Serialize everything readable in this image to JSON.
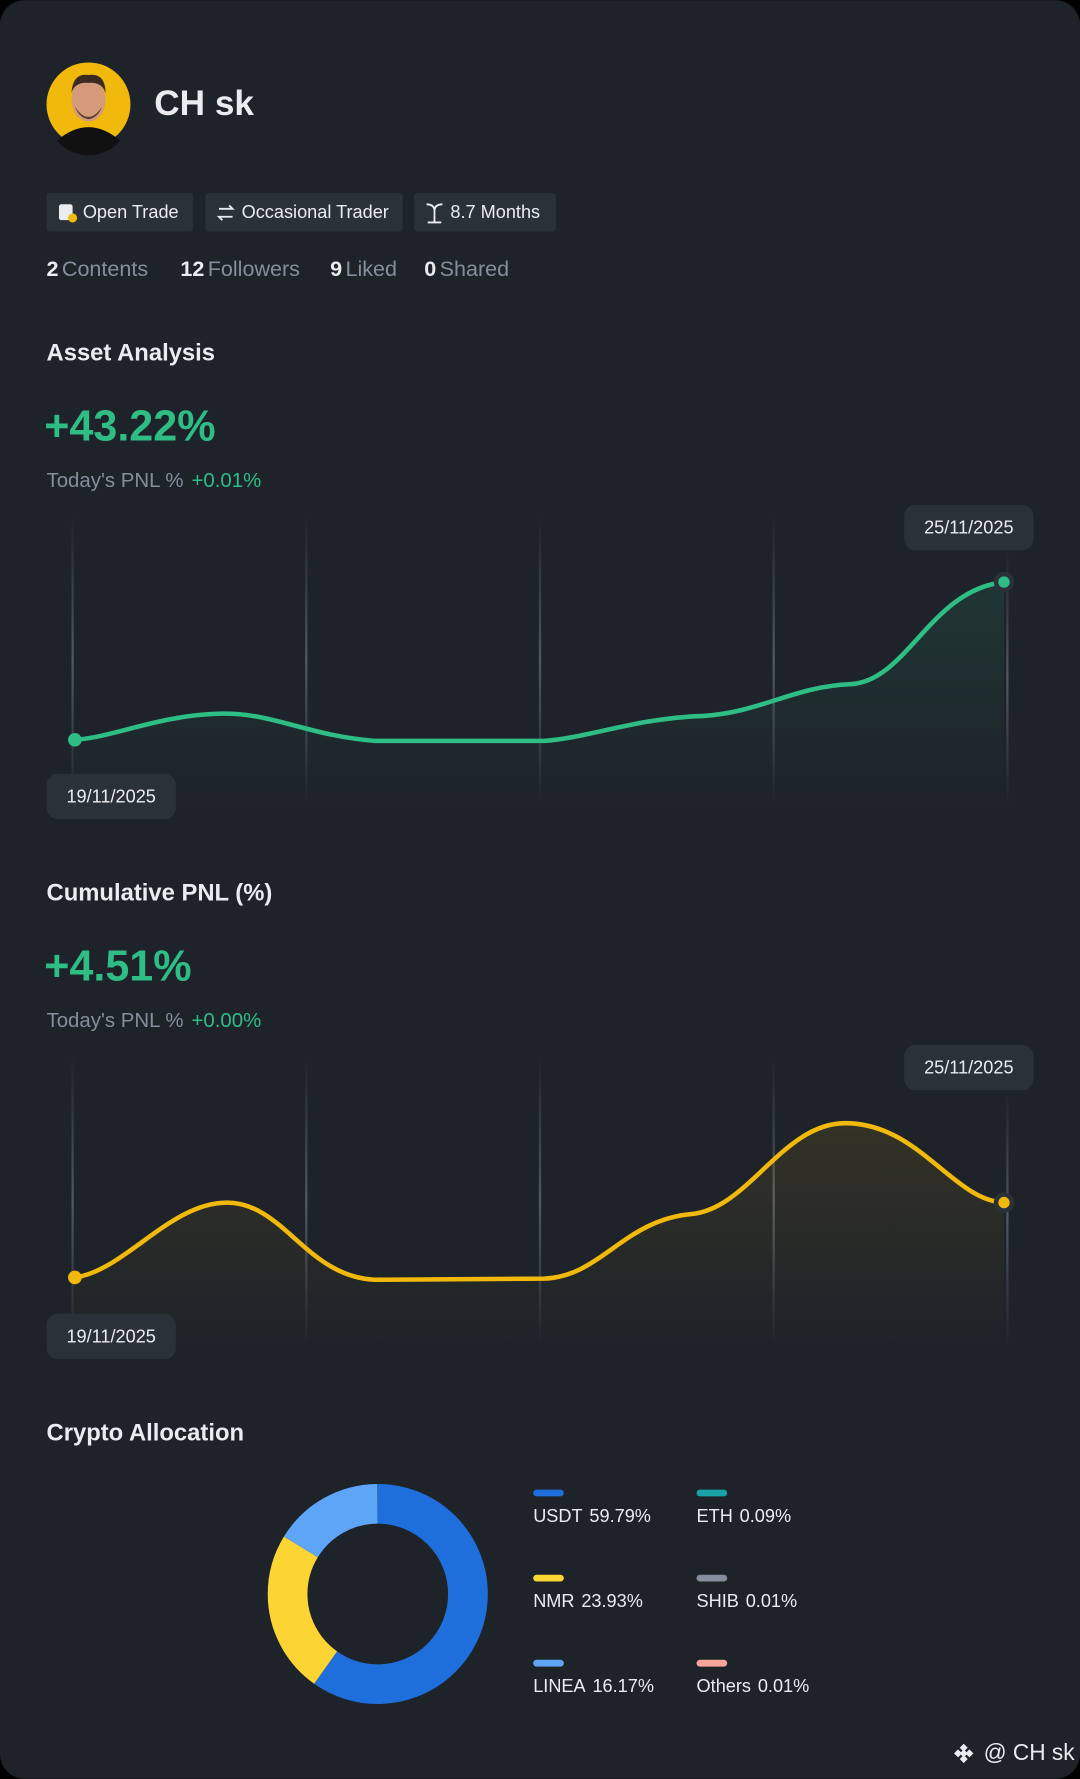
{
  "profile": {
    "name": "CH sk",
    "badges": [
      "Open Trade",
      "Occasional Trader",
      "8.7 Months"
    ],
    "stats": [
      {
        "value": 2,
        "label": "Contents"
      },
      {
        "value": 12,
        "label": "Followers"
      },
      {
        "value": 9,
        "label": "Liked"
      },
      {
        "value": 0,
        "label": "Shared"
      }
    ]
  },
  "asset_analysis": {
    "title": "Asset Analysis",
    "value": "+43.22%",
    "today_label": "Today's PNL %",
    "today_value": "+0.01%",
    "start_date": "19/11/2025",
    "end_date": "25/11/2025"
  },
  "cumulative_pnl": {
    "title": "Cumulative PNL (%)",
    "value": "+4.51%",
    "today_label": "Today's PNL %",
    "today_value": "+0.00%",
    "start_date": "19/11/2025",
    "end_date": "25/11/2025"
  },
  "crypto_allocation": {
    "title": "Crypto Allocation",
    "chart": {
      "type": "donut",
      "categories": [
        "USDT",
        "NMR",
        "LINEA",
        "ETH",
        "SHIB",
        "Others"
      ],
      "values": [
        59.79,
        23.93,
        16.17,
        0.09,
        0.01,
        0.01
      ],
      "value_labels": [
        "59.79%",
        "23.93%",
        "16.17%",
        "0.09%",
        "0.01%",
        "0.01%"
      ],
      "colors": [
        "#1e6fdc",
        "#fcd535",
        "#5ea5f7",
        "#1ba2a6",
        "#848e9c",
        "#f6a59a"
      ]
    }
  },
  "watermark": "@ CH sk"
}
